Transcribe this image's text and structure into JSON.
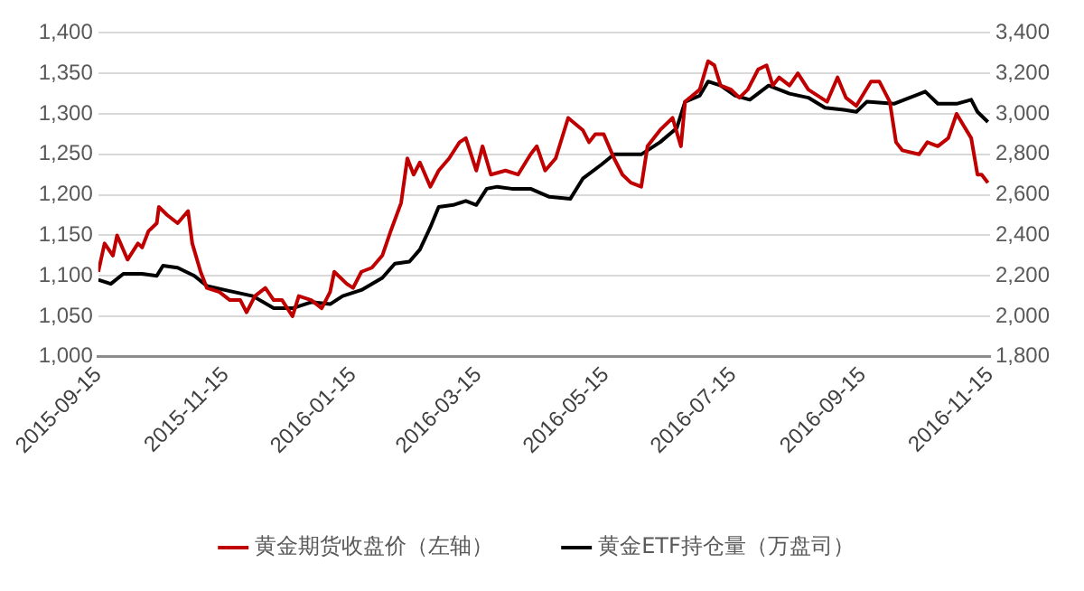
{
  "chart_data": {
    "type": "line",
    "legend": "bottom",
    "grid": "y",
    "marker": "none",
    "line_style": "solid",
    "xlim": [
      "2015-09-15",
      "2016-11-15"
    ],
    "xticks": [
      {
        "value": "2015-09-15",
        "label": "2015-09-15"
      },
      {
        "value": "2015-11-15",
        "label": "2015-11-15"
      },
      {
        "value": "2016-01-15",
        "label": "2016-01-15"
      },
      {
        "value": "2016-03-15",
        "label": "2016-03-15"
      },
      {
        "value": "2016-05-15",
        "label": "2016-05-15"
      },
      {
        "value": "2016-07-15",
        "label": "2016-07-15"
      },
      {
        "value": "2016-09-15",
        "label": "2016-09-15"
      },
      {
        "value": "2016-11-15",
        "label": "2016-11-15"
      }
    ],
    "ylim": [
      1000,
      1400
    ],
    "yticks": [
      {
        "value": 1000,
        "label": "1,000"
      },
      {
        "value": 1050,
        "label": "1,050"
      },
      {
        "value": 1100,
        "label": "1,100"
      },
      {
        "value": 1150,
        "label": "1,150"
      },
      {
        "value": 1200,
        "label": "1,200"
      },
      {
        "value": 1250,
        "label": "1,250"
      },
      {
        "value": 1300,
        "label": "1,300"
      },
      {
        "value": 1350,
        "label": "1,350"
      },
      {
        "value": 1400,
        "label": "1,400"
      }
    ],
    "y2lim": [
      1800,
      3400
    ],
    "y2ticks": [
      {
        "value": 1800,
        "label": "1,800"
      },
      {
        "value": 2000,
        "label": "2,000"
      },
      {
        "value": 2200,
        "label": "2,200"
      },
      {
        "value": 2400,
        "label": "2,400"
      },
      {
        "value": 2600,
        "label": "2,600"
      },
      {
        "value": 2800,
        "label": "2,800"
      },
      {
        "value": 3000,
        "label": "3,000"
      },
      {
        "value": 3200,
        "label": "3,200"
      },
      {
        "value": 3400,
        "label": "3,400"
      }
    ],
    "series": [
      {
        "name": "黄金期货收盘价（左轴）",
        "color": "#c00000",
        "x": [
          "2015-09-15",
          "2015-09-18",
          "2015-09-22",
          "2015-09-24",
          "2015-09-29",
          "2015-10-04",
          "2015-10-06",
          "2015-10-09",
          "2015-10-13",
          "2015-10-14",
          "2015-10-18",
          "2015-10-23",
          "2015-10-28",
          "2015-10-30",
          "2015-11-03",
          "2015-11-06",
          "2015-11-12",
          "2015-11-17",
          "2015-11-22",
          "2015-11-25",
          "2015-11-29",
          "2015-12-04",
          "2015-12-08",
          "2015-12-12",
          "2015-12-17",
          "2015-12-20",
          "2015-12-26",
          "2015-12-31",
          "2016-01-04",
          "2016-01-06",
          "2016-01-12",
          "2016-01-15",
          "2016-01-19",
          "2016-01-24",
          "2016-01-29",
          "2016-02-02",
          "2016-02-07",
          "2016-02-10",
          "2016-02-13",
          "2016-02-16",
          "2016-02-21",
          "2016-02-25",
          "2016-03-01",
          "2016-03-06",
          "2016-03-09",
          "2016-03-14",
          "2016-03-17",
          "2016-03-21",
          "2016-03-28",
          "2016-04-03",
          "2016-04-09",
          "2016-04-12",
          "2016-04-16",
          "2016-04-21",
          "2016-04-27",
          "2016-05-04",
          "2016-05-07",
          "2016-05-10",
          "2016-05-14",
          "2016-05-19",
          "2016-05-23",
          "2016-05-27",
          "2016-06-01",
          "2016-06-04",
          "2016-06-10",
          "2016-06-16",
          "2016-06-20",
          "2016-06-22",
          "2016-06-29",
          "2016-07-03",
          "2016-07-06",
          "2016-07-09",
          "2016-07-14",
          "2016-07-18",
          "2016-07-22",
          "2016-07-27",
          "2016-07-31",
          "2016-08-03",
          "2016-08-06",
          "2016-08-11",
          "2016-08-15",
          "2016-08-20",
          "2016-08-26",
          "2016-08-29",
          "2016-09-03",
          "2016-09-07",
          "2016-09-12",
          "2016-09-19",
          "2016-09-23",
          "2016-09-28",
          "2016-10-01",
          "2016-10-04",
          "2016-10-12",
          "2016-10-16",
          "2016-10-21",
          "2016-10-26",
          "2016-10-30",
          "2016-11-06",
          "2016-11-09",
          "2016-11-11",
          "2016-11-14"
        ],
        "values": [
          1105,
          1140,
          1125,
          1150,
          1120,
          1140,
          1135,
          1155,
          1165,
          1185,
          1175,
          1165,
          1180,
          1140,
          1105,
          1085,
          1080,
          1070,
          1070,
          1055,
          1075,
          1085,
          1070,
          1070,
          1050,
          1075,
          1070,
          1060,
          1080,
          1105,
          1090,
          1085,
          1105,
          1110,
          1125,
          1155,
          1190,
          1245,
          1225,
          1240,
          1210,
          1230,
          1245,
          1265,
          1270,
          1230,
          1260,
          1225,
          1230,
          1225,
          1250,
          1260,
          1230,
          1245,
          1295,
          1280,
          1265,
          1275,
          1275,
          1245,
          1225,
          1215,
          1210,
          1260,
          1280,
          1295,
          1260,
          1315,
          1330,
          1365,
          1360,
          1335,
          1330,
          1320,
          1330,
          1355,
          1360,
          1335,
          1345,
          1335,
          1350,
          1330,
          1320,
          1315,
          1345,
          1320,
          1310,
          1340,
          1340,
          1315,
          1265,
          1255,
          1250,
          1265,
          1260,
          1270,
          1300,
          1270,
          1225,
          1225,
          1215
        ]
      },
      {
        "name": "黄金ETF持仓量（万盘司）",
        "color": "#000000",
        "axis": "y2",
        "x": [
          "2015-09-15",
          "2015-09-21",
          "2015-09-27",
          "2015-10-06",
          "2015-10-13",
          "2015-10-16",
          "2015-10-23",
          "2015-10-31",
          "2015-11-06",
          "2015-11-19",
          "2015-11-28",
          "2015-12-08",
          "2015-12-17",
          "2015-12-26",
          "2016-01-04",
          "2016-01-10",
          "2016-01-19",
          "2016-01-29",
          "2016-02-04",
          "2016-02-11",
          "2016-02-16",
          "2016-02-21",
          "2016-02-25",
          "2016-03-03",
          "2016-03-09",
          "2016-03-14",
          "2016-03-19",
          "2016-03-24",
          "2016-03-31",
          "2016-04-09",
          "2016-04-18",
          "2016-04-28",
          "2016-05-04",
          "2016-05-13",
          "2016-05-19",
          "2016-06-01",
          "2016-06-10",
          "2016-06-18",
          "2016-06-22",
          "2016-06-29",
          "2016-07-03",
          "2016-07-09",
          "2016-07-16",
          "2016-07-23",
          "2016-08-01",
          "2016-08-11",
          "2016-08-20",
          "2016-08-28",
          "2016-09-06",
          "2016-09-12",
          "2016-09-17",
          "2016-09-30",
          "2016-10-05",
          "2016-10-15",
          "2016-10-21",
          "2016-10-30",
          "2016-11-06",
          "2016-11-09",
          "2016-11-14"
        ],
        "values": [
          2180,
          2160,
          2210,
          2210,
          2200,
          2250,
          2240,
          2200,
          2150,
          2120,
          2100,
          2040,
          2040,
          2070,
          2060,
          2100,
          2130,
          2190,
          2260,
          2270,
          2330,
          2440,
          2540,
          2550,
          2570,
          2550,
          2630,
          2640,
          2630,
          2630,
          2590,
          2580,
          2680,
          2750,
          2800,
          2800,
          2860,
          2930,
          3060,
          3090,
          3160,
          3140,
          3090,
          3070,
          3140,
          3100,
          3080,
          3030,
          3020,
          3010,
          3060,
          3050,
          3070,
          3110,
          3050,
          3050,
          3070,
          3010,
          2960
        ]
      }
    ]
  }
}
